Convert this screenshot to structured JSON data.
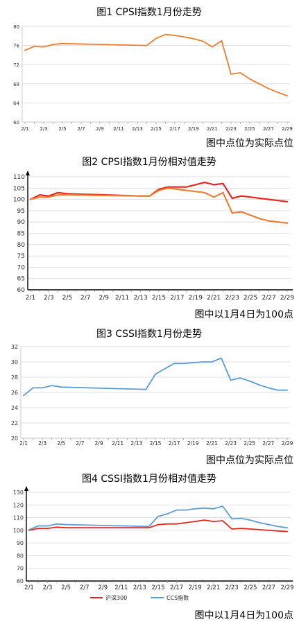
{
  "x_tick_labels": [
    "2/1",
    "2/3",
    "2/5",
    "2/7",
    "2/9",
    "2/11",
    "2/13",
    "2/15",
    "2/17",
    "2/19",
    "2/21",
    "2/23",
    "2/25",
    "2/27",
    "2/29"
  ],
  "chart_data": [
    {
      "type": "line",
      "title": "图1 CPSI指数1月份走势",
      "note": "图中点位为实际点位",
      "ylim": [
        60,
        80
      ],
      "yticks": [
        60,
        64,
        68,
        72,
        76,
        80
      ],
      "grid": true,
      "series": [
        {
          "color": "#ED7D31",
          "x": [
            1,
            2,
            3,
            4,
            5,
            14,
            15,
            16,
            17,
            18,
            19,
            20,
            21,
            22,
            23,
            24,
            25,
            26,
            27,
            28,
            29
          ],
          "values": [
            75.0,
            75.8,
            75.7,
            76.2,
            76.4,
            76.0,
            77.5,
            78.3,
            78.1,
            77.8,
            77.4,
            76.9,
            75.7,
            77.0,
            70.0,
            70.3,
            69.0,
            68.0,
            67.0,
            66.2,
            65.5
          ]
        }
      ]
    },
    {
      "type": "line",
      "title": "图2 CPSI指数1月份相对值走势",
      "note": "图中以1月4日为100点",
      "ylim": [
        60,
        110
      ],
      "yticks": [
        60,
        65,
        70,
        75,
        80,
        85,
        90,
        95,
        100,
        105,
        110
      ],
      "grid": true,
      "series": [
        {
          "color": "#E8251F",
          "x": [
            1,
            2,
            3,
            4,
            5,
            13,
            14,
            15,
            16,
            17,
            18,
            19,
            20,
            21,
            22,
            23,
            24,
            25,
            26,
            27,
            28,
            29
          ],
          "values": [
            100,
            102,
            101.5,
            103,
            102.5,
            101.5,
            101.5,
            104.5,
            105.5,
            105.5,
            105.5,
            106.5,
            107.5,
            106.5,
            107,
            100.5,
            101.5,
            101,
            100.5,
            100,
            99.5,
            99
          ]
        },
        {
          "color": "#ED7D31",
          "x": [
            1,
            2,
            3,
            4,
            5,
            13,
            14,
            15,
            16,
            17,
            18,
            19,
            20,
            21,
            22,
            23,
            24,
            25,
            26,
            27,
            28,
            29
          ],
          "values": [
            100,
            101,
            101,
            102,
            102,
            101.5,
            101.5,
            104,
            105,
            104.5,
            104,
            103.5,
            103,
            101,
            103,
            94,
            94.5,
            93,
            91.5,
            90.5,
            90,
            89.5
          ]
        }
      ]
    },
    {
      "type": "line",
      "title": "图3 CSSI指数1月份走势",
      "note": "图中点位为实际点位",
      "ylim": [
        20,
        32
      ],
      "yticks": [
        20,
        22,
        24,
        26,
        28,
        30,
        32
      ],
      "grid": true,
      "series": [
        {
          "color": "#5B9BD5",
          "x": [
            1,
            2,
            3,
            4,
            5,
            14,
            15,
            16,
            17,
            18,
            19,
            20,
            21,
            22,
            23,
            24,
            25,
            26,
            27,
            28,
            29
          ],
          "values": [
            25.6,
            26.6,
            26.6,
            26.9,
            26.7,
            26.4,
            28.4,
            29.1,
            29.8,
            29.8,
            29.9,
            30.0,
            30.0,
            30.5,
            27.6,
            27.9,
            27.5,
            27.0,
            26.6,
            26.3,
            26.3
          ]
        }
      ]
    },
    {
      "type": "line",
      "title": "图4 CSSI指数1月份相对值走势",
      "note": "图中以1月4日为100点",
      "ylim": [
        60,
        130
      ],
      "yticks": [
        60,
        70,
        80,
        90,
        100,
        110,
        120,
        130
      ],
      "grid": true,
      "legend": "bottom",
      "series": [
        {
          "name": "沪深300",
          "color": "#E8251F",
          "x": [
            1,
            2,
            3,
            4,
            5,
            14,
            15,
            16,
            17,
            18,
            19,
            20,
            21,
            22,
            23,
            24,
            25,
            26,
            27,
            28,
            29
          ],
          "values": [
            100,
            101.5,
            101.5,
            102.5,
            102,
            102,
            104.5,
            105,
            105,
            106,
            107,
            108,
            107,
            107.5,
            101,
            101.5,
            101,
            100.5,
            100,
            99.5,
            99
          ]
        },
        {
          "name": "CCS指数",
          "color": "#5B9BD5",
          "x": [
            1,
            2,
            3,
            4,
            5,
            14,
            15,
            16,
            17,
            18,
            19,
            20,
            21,
            22,
            23,
            24,
            25,
            26,
            27,
            28,
            29
          ],
          "values": [
            100.5,
            103.5,
            103.5,
            105,
            104.5,
            103,
            111,
            113,
            116,
            116,
            117,
            117.5,
            117,
            119,
            109,
            109.5,
            108,
            106,
            104.5,
            103,
            102
          ]
        }
      ]
    }
  ]
}
